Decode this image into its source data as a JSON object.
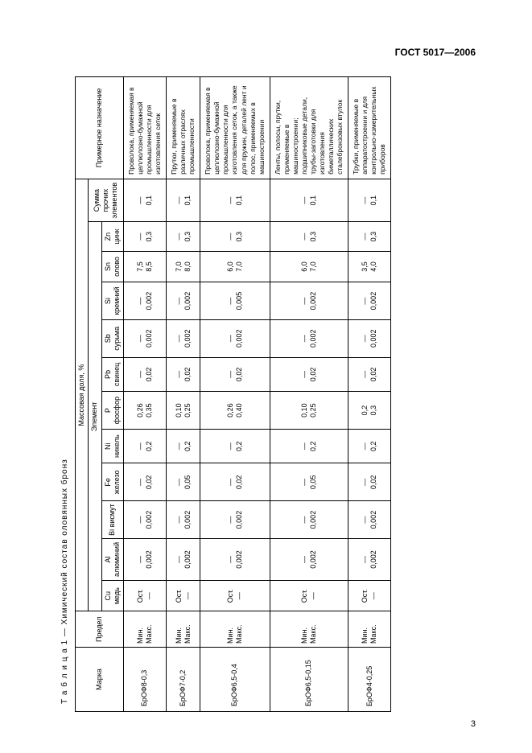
{
  "document_id": "ГОСТ 5017—2006",
  "page_number": "3",
  "table_caption": "Т а б л и ц а   1 — Химический состав оловянных бронз",
  "headers": {
    "grade": "Марка",
    "limit": "Предел",
    "mass_fraction": "Массовая доля, %",
    "element": "Элемент",
    "sum_other": "Сумма прочих элементов",
    "application": "Примерное назначение",
    "min": "Мин.",
    "max": "Макс.",
    "elements": {
      "cu": "Cu медь",
      "al": "Al алюминий",
      "bi": "Bi висмут",
      "fe": "Fe железо",
      "ni": "Ni никель",
      "p": "P фосфор",
      "pb": "Pb свинец",
      "sb": "Sb сурьма",
      "si": "Si кремний",
      "sn": "Sn олово",
      "zn": "Zn цинк"
    }
  },
  "rows": [
    {
      "grade": "БрОФ8-0,3",
      "cu_min": "Ост.",
      "cu_max": "—",
      "al_min": "—",
      "al_max": "0,002",
      "bi_min": "—",
      "bi_max": "0,002",
      "fe_min": "—",
      "fe_max": "0,02",
      "ni_min": "—",
      "ni_max": "0,2",
      "p_min": "0,26",
      "p_max": "0,35",
      "pb_min": "—",
      "pb_max": "0,02",
      "sb_min": "—",
      "sb_max": "0,002",
      "si_min": "—",
      "si_max": "0,002",
      "sn_min": "7,5",
      "sn_max": "8,5",
      "zn_min": "—",
      "zn_max": "0,3",
      "sum_min": "—",
      "sum_max": "0,1",
      "desc": "Проволока, применяемая в целлюлозно-бумажной промышленности для изготовления сеток"
    },
    {
      "grade": "БрОФ7-0,2",
      "cu_min": "Ост.",
      "cu_max": "—",
      "al_min": "—",
      "al_max": "0,002",
      "bi_min": "—",
      "bi_max": "0,002",
      "fe_min": "—",
      "fe_max": "0,05",
      "ni_min": "—",
      "ni_max": "0,2",
      "p_min": "0,10",
      "p_max": "0,25",
      "pb_min": "—",
      "pb_max": "0,02",
      "sb_min": "—",
      "sb_max": "0,002",
      "si_min": "—",
      "si_max": "0,002",
      "sn_min": "7,0",
      "sn_max": "8,0",
      "zn_min": "—",
      "zn_max": "0,3",
      "sum_min": "—",
      "sum_max": "0,1",
      "desc": "Прутки, применяемые в различных отраслях промышленности"
    },
    {
      "grade": "БрОФ6,5-0,4",
      "cu_min": "Ост.",
      "cu_max": "—",
      "al_min": "—",
      "al_max": "0,002",
      "bi_min": "—",
      "bi_max": "0,002",
      "fe_min": "—",
      "fe_max": "0,02",
      "ni_min": "—",
      "ni_max": "0,2",
      "p_min": "0,26",
      "p_max": "0,40",
      "pb_min": "—",
      "pb_max": "0,02",
      "sb_min": "—",
      "sb_max": "0,002",
      "si_min": "—",
      "si_max": "0,005",
      "sn_min": "6,0",
      "sn_max": "7,0",
      "zn_min": "—",
      "zn_max": "0,3",
      "sum_min": "—",
      "sum_max": "0,1",
      "desc": "Проволока, применяемая в целлюлозно-бумажной промышленности для изготовления сеток, а также для пружин, деталей лент и полос, применяемых в машиностроении"
    },
    {
      "grade": "БрОФ6,5-0,15",
      "cu_min": "Ост.",
      "cu_max": "—",
      "al_min": "—",
      "al_max": "0,002",
      "bi_min": "—",
      "bi_max": "0,002",
      "fe_min": "—",
      "fe_max": "0,05",
      "ni_min": "—",
      "ni_max": "0,2",
      "p_min": "0,10",
      "p_max": "0,25",
      "pb_min": "—",
      "pb_max": "0,02",
      "sb_min": "—",
      "sb_max": "0,002",
      "si_min": "—",
      "si_max": "0,002",
      "sn_min": "6,0",
      "sn_max": "7,0",
      "zn_min": "—",
      "zn_max": "0,3",
      "sum_min": "—",
      "sum_max": "0,1",
      "desc": "Ленты, полосы, прутки, применяемые в машиностроении; подшипниковые детали, трубы-заготовки для изготовления биметаллических сталебронзовых втулок"
    },
    {
      "grade": "БрОФ4-0,25",
      "cu_min": "Ост.",
      "cu_max": "—",
      "al_min": "—",
      "al_max": "0,002",
      "bi_min": "—",
      "bi_max": "0,002",
      "fe_min": "—",
      "fe_max": "0,02",
      "ni_min": "—",
      "ni_max": "0,2",
      "p_min": "0,2",
      "p_max": "0,3",
      "pb_min": "—",
      "pb_max": "0,02",
      "sb_min": "—",
      "sb_max": "0,002",
      "si_min": "—",
      "si_max": "0,002",
      "sn_min": "3,5",
      "sn_max": "4,0",
      "zn_min": "—",
      "zn_max": "0,3",
      "sum_min": "—",
      "sum_max": "0,1",
      "desc": "Трубки, применяемые в аппаратостроении и для контрольно-измерительных приборов"
    }
  ]
}
